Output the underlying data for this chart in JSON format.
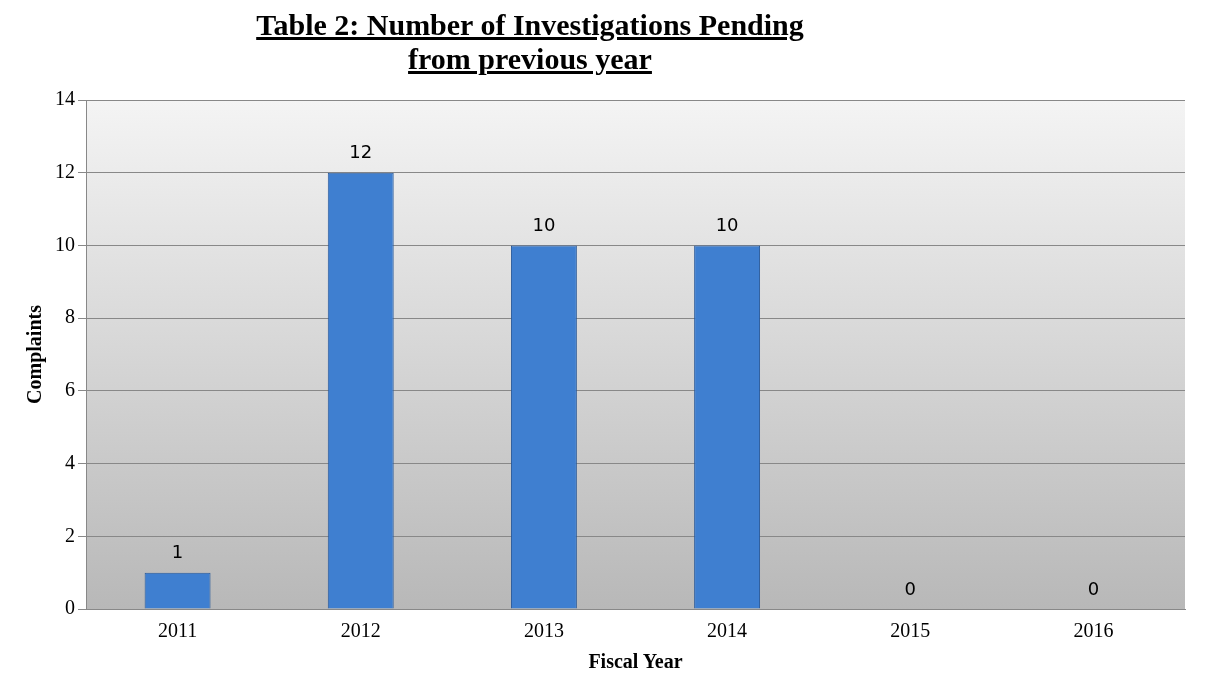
{
  "chart_data": {
    "type": "bar",
    "title": "Table 2:  Number of Investigations Pending from previous year",
    "xlabel": "Fiscal Year",
    "ylabel": "Complaints",
    "categories": [
      "2011",
      "2012",
      "2013",
      "2014",
      "2015",
      "2016"
    ],
    "values": [
      1,
      12,
      10,
      10,
      0,
      0
    ],
    "color": "#3f7fd0",
    "ylim": [
      0,
      14
    ],
    "yticks": [
      0,
      2,
      4,
      6,
      8,
      10,
      12,
      14
    ],
    "grid": "y",
    "data_labels": true,
    "legend": false
  }
}
